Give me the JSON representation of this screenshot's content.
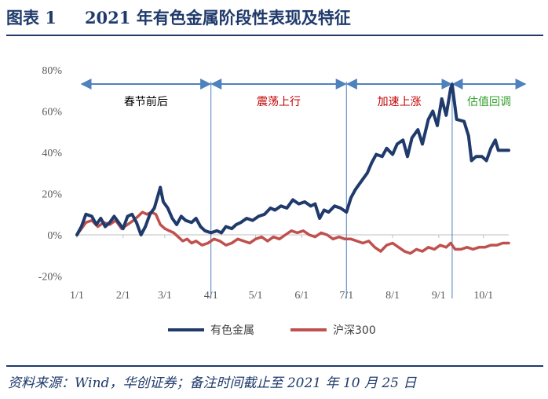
{
  "figure": {
    "number": "图表 1",
    "title": "2021 年有色金属阶段性表现及特征"
  },
  "source_note": "资料来源：Wind，华创证券；备注时间截止至 2021 年 10 月 25 日",
  "chart_data": {
    "type": "line",
    "yticks": [
      "80%",
      "60%",
      "40%",
      "20%",
      "0%",
      "-20%"
    ],
    "ylim": [
      -20,
      80
    ],
    "xticks": [
      "1/1",
      "2/1",
      "3/1",
      "4/1",
      "5/1",
      "6/1",
      "7/1",
      "8/1",
      "9/1",
      "10/1"
    ],
    "grid": false,
    "legend_position": "bottom",
    "phases": [
      {
        "label": "春节前后",
        "color": "#000000"
      },
      {
        "label": "震荡上行",
        "color": "#c00000"
      },
      {
        "label": "加速上涨",
        "color": "#c00000"
      },
      {
        "label": "估值回调",
        "color": "#33a02c"
      }
    ],
    "phase_boundaries": [
      90,
      181,
      252
    ],
    "series": [
      {
        "name": "有色金属",
        "color": "#1f3a6b",
        "points": [
          [
            0,
            0
          ],
          [
            3,
            4
          ],
          [
            6,
            10
          ],
          [
            10,
            9
          ],
          [
            13,
            5
          ],
          [
            16,
            8
          ],
          [
            19,
            4
          ],
          [
            22,
            6
          ],
          [
            25,
            9
          ],
          [
            28,
            6
          ],
          [
            31,
            3
          ],
          [
            34,
            9
          ],
          [
            37,
            10
          ],
          [
            40,
            6
          ],
          [
            43,
            0
          ],
          [
            46,
            4
          ],
          [
            49,
            10
          ],
          [
            52,
            13
          ],
          [
            54,
            18
          ],
          [
            56,
            23
          ],
          [
            58,
            16
          ],
          [
            61,
            13
          ],
          [
            64,
            8
          ],
          [
            67,
            5
          ],
          [
            70,
            9
          ],
          [
            73,
            7
          ],
          [
            77,
            6
          ],
          [
            80,
            8
          ],
          [
            83,
            4
          ],
          [
            86,
            2
          ],
          [
            90,
            1
          ],
          [
            94,
            2
          ],
          [
            97,
            1
          ],
          [
            100,
            4
          ],
          [
            104,
            3
          ],
          [
            107,
            5
          ],
          [
            110,
            6
          ],
          [
            114,
            8
          ],
          [
            118,
            7
          ],
          [
            122,
            9
          ],
          [
            126,
            10
          ],
          [
            130,
            13
          ],
          [
            133,
            12
          ],
          [
            137,
            14
          ],
          [
            141,
            13
          ],
          [
            145,
            17
          ],
          [
            149,
            15
          ],
          [
            153,
            16
          ],
          [
            157,
            14
          ],
          [
            160,
            15
          ],
          [
            163,
            8
          ],
          [
            166,
            12
          ],
          [
            169,
            11
          ],
          [
            173,
            14
          ],
          [
            177,
            13
          ],
          [
            181,
            11
          ],
          [
            184,
            18
          ],
          [
            187,
            22
          ],
          [
            191,
            26
          ],
          [
            195,
            30
          ],
          [
            198,
            35
          ],
          [
            201,
            39
          ],
          [
            205,
            38
          ],
          [
            208,
            42
          ],
          [
            212,
            39
          ],
          [
            215,
            44
          ],
          [
            219,
            46
          ],
          [
            222,
            38
          ],
          [
            225,
            47
          ],
          [
            229,
            51
          ],
          [
            232,
            44
          ],
          [
            236,
            56
          ],
          [
            239,
            60
          ],
          [
            242,
            53
          ],
          [
            245,
            66
          ],
          [
            248,
            58
          ],
          [
            251,
            71
          ],
          [
            252,
            73
          ],
          [
            255,
            56
          ],
          [
            260,
            55
          ],
          [
            263,
            48
          ],
          [
            265,
            36
          ],
          [
            268,
            38
          ],
          [
            272,
            38
          ],
          [
            275,
            36
          ],
          [
            278,
            42
          ],
          [
            281,
            46
          ],
          [
            283,
            41
          ],
          [
            290,
            41
          ]
        ]
      },
      {
        "name": "沪深300",
        "color": "#c0504d",
        "points": [
          [
            0,
            0
          ],
          [
            3,
            3
          ],
          [
            6,
            6
          ],
          [
            10,
            7
          ],
          [
            14,
            4
          ],
          [
            18,
            6
          ],
          [
            22,
            5
          ],
          [
            26,
            7
          ],
          [
            30,
            3
          ],
          [
            34,
            5
          ],
          [
            38,
            7
          ],
          [
            41,
            9
          ],
          [
            44,
            11
          ],
          [
            47,
            10
          ],
          [
            50,
            11
          ],
          [
            53,
            10
          ],
          [
            56,
            5
          ],
          [
            59,
            3
          ],
          [
            62,
            2
          ],
          [
            65,
            1
          ],
          [
            68,
            -1
          ],
          [
            71,
            -3
          ],
          [
            74,
            -2
          ],
          [
            77,
            -4
          ],
          [
            80,
            -3
          ],
          [
            84,
            -5
          ],
          [
            88,
            -4
          ],
          [
            92,
            -2
          ],
          [
            96,
            -3
          ],
          [
            100,
            -5
          ],
          [
            104,
            -4
          ],
          [
            108,
            -2
          ],
          [
            112,
            -3
          ],
          [
            116,
            -4
          ],
          [
            120,
            -2
          ],
          [
            124,
            -1
          ],
          [
            128,
            -3
          ],
          [
            132,
            -1
          ],
          [
            136,
            -2
          ],
          [
            140,
            0
          ],
          [
            144,
            2
          ],
          [
            148,
            1
          ],
          [
            152,
            2
          ],
          [
            156,
            0
          ],
          [
            160,
            -1
          ],
          [
            164,
            1
          ],
          [
            168,
            0
          ],
          [
            172,
            -2
          ],
          [
            176,
            -1
          ],
          [
            180,
            -2
          ],
          [
            184,
            -2
          ],
          [
            188,
            -3
          ],
          [
            192,
            -4
          ],
          [
            196,
            -3
          ],
          [
            200,
            -6
          ],
          [
            204,
            -8
          ],
          [
            208,
            -5
          ],
          [
            212,
            -4
          ],
          [
            216,
            -6
          ],
          [
            220,
            -8
          ],
          [
            224,
            -9
          ],
          [
            228,
            -7
          ],
          [
            232,
            -8
          ],
          [
            236,
            -6
          ],
          [
            240,
            -7
          ],
          [
            244,
            -5
          ],
          [
            248,
            -6
          ],
          [
            251,
            -4
          ],
          [
            254,
            -7
          ],
          [
            258,
            -7
          ],
          [
            262,
            -6
          ],
          [
            266,
            -7
          ],
          [
            270,
            -6
          ],
          [
            274,
            -6
          ],
          [
            278,
            -5
          ],
          [
            282,
            -5
          ],
          [
            286,
            -4
          ],
          [
            290,
            -4
          ]
        ]
      }
    ]
  }
}
